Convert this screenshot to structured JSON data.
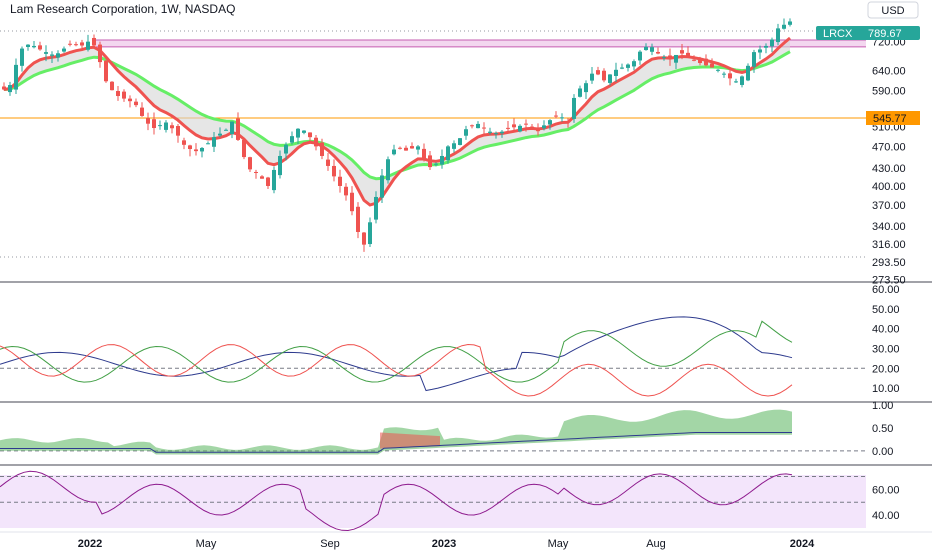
{
  "title": "Lam Research Corporation, 1W, NASDAQ",
  "currency": "USD",
  "ticker": "LRCX",
  "last_price": "789.67",
  "level_label": "545.77",
  "colors": {
    "up": "#26a69a",
    "down": "#ef5350",
    "ema_fast": "#ef5350",
    "ema_slow": "#66ee66",
    "cloud": "#d6d6d6",
    "resistance_zone": "#f3d7ef",
    "resistance_line": "#c65cb0",
    "support_line": "#ff9800",
    "rsi_line": "#8e1b8e",
    "rsi_bg": "#f3e5fb",
    "di_plus": "#43a047",
    "di_minus": "#ef5350",
    "adx": "#2e3b8e"
  },
  "chart_data": [
    {
      "type": "candlestick",
      "name": "price",
      "ylabels": [
        "720.00",
        "640.00",
        "590.00",
        "510.00",
        "470.00",
        "430.00",
        "400.00",
        "370.00",
        "340.00",
        "316.00",
        "293.50",
        "273.50"
      ],
      "ylim": [
        273.5,
        800
      ],
      "scale": "log",
      "x_labels": [
        "2022",
        "May",
        "Sep",
        "2023",
        "May",
        "Aug",
        "2024"
      ],
      "resistance_zone": [
        705,
        725
      ],
      "support_level": 545.77,
      "note_values": {
        "ticker": "LRCX",
        "last": 789.67
      }
    },
    {
      "type": "line",
      "name": "DMI",
      "ylabels": [
        "60.00",
        "50.00",
        "40.00",
        "30.00",
        "20.00",
        "10.00"
      ],
      "ylim": [
        5,
        62
      ],
      "reference": 20
    },
    {
      "type": "area",
      "name": "momentum",
      "ylabels": [
        "1.00",
        "0.50",
        "0.00"
      ],
      "ylim": [
        -0.2,
        1.0
      ],
      "reference": 0
    },
    {
      "type": "line",
      "name": "RSI",
      "ylabels": [
        "60.00",
        "40.00"
      ],
      "ylim": [
        30,
        75
      ],
      "reference": [
        70,
        50,
        30
      ]
    }
  ]
}
